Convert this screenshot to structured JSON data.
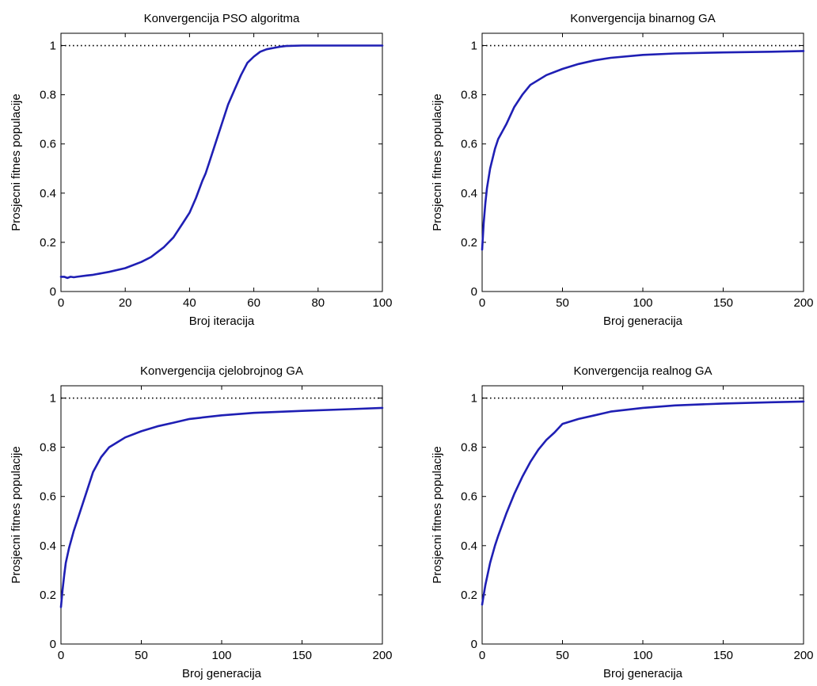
{
  "chart_data": [
    {
      "type": "line",
      "title": "Konvergencija PSO algoritma",
      "xlabel": "Broj iteracija",
      "ylabel": "Prosjecni fitnes populacije",
      "xlim": [
        0,
        100
      ],
      "ylim": [
        0,
        1.05
      ],
      "xticks": [
        0,
        20,
        40,
        60,
        80,
        100
      ],
      "xtick_labels": [
        "0",
        "20",
        "40",
        "60",
        "80",
        "100"
      ],
      "yticks": [
        0,
        0.2,
        0.4,
        0.6,
        0.8,
        1
      ],
      "ytick_labels": [
        "0",
        "0.2",
        "0.4",
        "0.6",
        "0.8",
        "1"
      ],
      "grid": false,
      "reference_line": {
        "y": 1,
        "style": "dotted",
        "color": "#000000"
      },
      "series": [
        {
          "color": "#1f1fb4",
          "x": [
            0,
            1,
            2,
            3,
            4,
            5,
            8,
            10,
            15,
            20,
            25,
            28,
            30,
            32,
            35,
            38,
            40,
            42,
            44,
            45,
            46,
            48,
            50,
            52,
            54,
            56,
            58,
            60,
            62,
            64,
            66,
            68,
            70,
            75,
            80,
            90,
            100
          ],
          "y": [
            0.06,
            0.06,
            0.055,
            0.06,
            0.058,
            0.06,
            0.065,
            0.068,
            0.08,
            0.095,
            0.12,
            0.14,
            0.16,
            0.18,
            0.22,
            0.28,
            0.32,
            0.38,
            0.45,
            0.48,
            0.52,
            0.6,
            0.68,
            0.76,
            0.82,
            0.88,
            0.93,
            0.955,
            0.975,
            0.985,
            0.99,
            0.995,
            0.998,
            1.0,
            1.0,
            1.0,
            1.0
          ]
        }
      ]
    },
    {
      "type": "line",
      "title": "Konvergencija binarnog GA",
      "xlabel": "Broj generacija",
      "ylabel": "Prosjecni fitnes populacije",
      "xlim": [
        0,
        200
      ],
      "ylim": [
        0,
        1.05
      ],
      "xticks": [
        0,
        50,
        100,
        150,
        200
      ],
      "xtick_labels": [
        "0",
        "50",
        "100",
        "150",
        "200"
      ],
      "yticks": [
        0,
        0.2,
        0.4,
        0.6,
        0.8,
        1
      ],
      "ytick_labels": [
        "0",
        "0.2",
        "0.4",
        "0.6",
        "0.8",
        "1"
      ],
      "grid": false,
      "reference_line": {
        "y": 1,
        "style": "dotted",
        "color": "#000000"
      },
      "series": [
        {
          "color": "#1f1fb4",
          "x": [
            0,
            1,
            2,
            3,
            5,
            8,
            10,
            15,
            20,
            25,
            30,
            40,
            50,
            60,
            70,
            80,
            100,
            120,
            150,
            180,
            200
          ],
          "y": [
            0.17,
            0.28,
            0.36,
            0.42,
            0.5,
            0.58,
            0.62,
            0.68,
            0.75,
            0.8,
            0.84,
            0.88,
            0.905,
            0.925,
            0.94,
            0.95,
            0.962,
            0.968,
            0.972,
            0.975,
            0.978
          ]
        }
      ]
    },
    {
      "type": "line",
      "title": "Konvergencija cjelobrojnog GA",
      "xlabel": "Broj generacija",
      "ylabel": "Prosjecni fitnes populacije",
      "xlim": [
        0,
        200
      ],
      "ylim": [
        0,
        1.05
      ],
      "xticks": [
        0,
        50,
        100,
        150,
        200
      ],
      "xtick_labels": [
        "0",
        "50",
        "100",
        "150",
        "200"
      ],
      "yticks": [
        0,
        0.2,
        0.4,
        0.6,
        0.8,
        1
      ],
      "ytick_labels": [
        "0",
        "0.2",
        "0.4",
        "0.6",
        "0.8",
        "1"
      ],
      "grid": false,
      "reference_line": {
        "y": 1,
        "style": "dotted",
        "color": "#000000"
      },
      "series": [
        {
          "color": "#1f1fb4",
          "x": [
            0,
            1,
            2,
            3,
            5,
            8,
            10,
            15,
            20,
            25,
            30,
            35,
            40,
            50,
            60,
            70,
            80,
            100,
            120,
            150,
            180,
            200
          ],
          "y": [
            0.15,
            0.22,
            0.28,
            0.33,
            0.39,
            0.46,
            0.5,
            0.6,
            0.7,
            0.76,
            0.8,
            0.82,
            0.84,
            0.865,
            0.885,
            0.9,
            0.915,
            0.93,
            0.94,
            0.948,
            0.955,
            0.96
          ]
        }
      ]
    },
    {
      "type": "line",
      "title": "Konvergencija realnog GA",
      "xlabel": "Broj generacija",
      "ylabel": "Prosjecni fitnes populacije",
      "xlim": [
        0,
        200
      ],
      "ylim": [
        0,
        1.05
      ],
      "xticks": [
        0,
        50,
        100,
        150,
        200
      ],
      "xtick_labels": [
        "0",
        "50",
        "100",
        "150",
        "200"
      ],
      "yticks": [
        0,
        0.2,
        0.4,
        0.6,
        0.8,
        1
      ],
      "ytick_labels": [
        "0",
        "0.2",
        "0.4",
        "0.6",
        "0.8",
        "1"
      ],
      "grid": false,
      "reference_line": {
        "y": 1,
        "style": "dotted",
        "color": "#000000"
      },
      "series": [
        {
          "color": "#1f1fb4",
          "x": [
            0,
            1,
            2,
            3,
            5,
            8,
            10,
            15,
            20,
            25,
            30,
            35,
            40,
            45,
            50,
            60,
            70,
            80,
            100,
            120,
            150,
            180,
            200
          ],
          "y": [
            0.16,
            0.2,
            0.24,
            0.27,
            0.33,
            0.4,
            0.44,
            0.53,
            0.61,
            0.68,
            0.74,
            0.79,
            0.83,
            0.86,
            0.895,
            0.915,
            0.93,
            0.945,
            0.96,
            0.97,
            0.978,
            0.983,
            0.986
          ]
        }
      ]
    }
  ]
}
